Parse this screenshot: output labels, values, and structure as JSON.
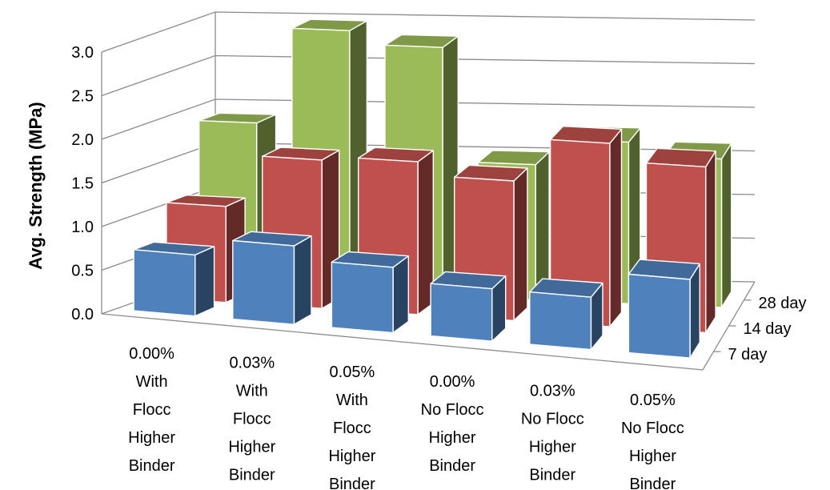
{
  "chart_data": {
    "type": "bar",
    "subtype": "3d-column",
    "title": "",
    "ylabel": "Avg. Strength (MPa)",
    "xlabel": "",
    "ylim": [
      0,
      3.0
    ],
    "yticks": [
      "0.0",
      "0.5",
      "1.0",
      "1.5",
      "2.0",
      "2.5",
      "3.0"
    ],
    "grid": true,
    "legend": "none",
    "categories": [
      [
        "0.00%",
        "With",
        "Flocc",
        "Higher",
        "Binder"
      ],
      [
        "0.03%",
        "With",
        "Flocc",
        "Higher",
        "Binder"
      ],
      [
        "0.05%",
        "With",
        "Flocc",
        "Higher",
        "Binder"
      ],
      [
        "0.00%",
        "No Flocc",
        "Higher",
        "Binder"
      ],
      [
        "0.03%",
        "No Flocc",
        "Higher",
        "Binder"
      ],
      [
        "0.05%",
        "No Flocc",
        "Higher",
        "Binder"
      ]
    ],
    "series": [
      {
        "name": "7 day",
        "color": "#4f81bd",
        "values": [
          0.7,
          0.9,
          0.75,
          0.6,
          0.6,
          0.9
        ]
      },
      {
        "name": "14 day",
        "color": "#c0504d",
        "values": [
          1.1,
          1.7,
          1.75,
          1.6,
          2.1,
          1.9
        ]
      },
      {
        "name": "28 day",
        "color": "#9bbb59",
        "values": [
          1.9,
          3.0,
          2.85,
          1.55,
          1.85,
          1.7
        ]
      }
    ]
  }
}
